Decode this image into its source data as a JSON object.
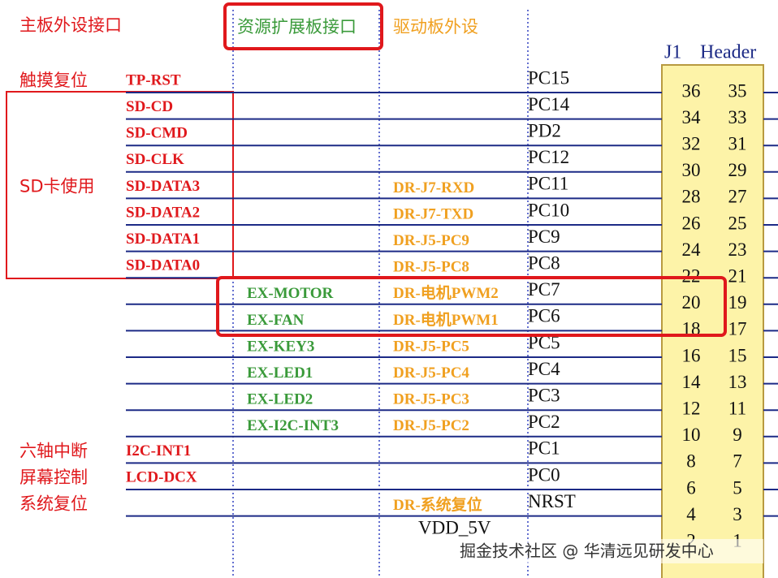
{
  "header": {
    "main": "主板外设接口",
    "expansion": "资源扩展板接口",
    "driver": "驱动板外设",
    "connector": "J1",
    "connector_type": "Header"
  },
  "groups": [
    {
      "label": "触摸复位",
      "row": 0
    },
    {
      "label": "SD卡使用",
      "row": 4
    },
    {
      "label": "六轴中断",
      "row": 14
    },
    {
      "label": "屏幕控制",
      "row": 15
    },
    {
      "label": "系统复位",
      "row": 16
    }
  ],
  "rows": [
    {
      "main": "TP-RST",
      "pin": "PC15",
      "left": 36,
      "right": 35
    },
    {
      "main": "SD-CD",
      "pin": "PC14",
      "left": 34,
      "right": 33
    },
    {
      "main": "SD-CMD",
      "pin": "PD2",
      "left": 32,
      "right": 31
    },
    {
      "main": "SD-CLK",
      "pin": "PC12",
      "left": 30,
      "right": 29
    },
    {
      "main": "SD-DATA3",
      "driver": "DR-J7-RXD",
      "pin": "PC11",
      "left": 28,
      "right": 27
    },
    {
      "main": "SD-DATA2",
      "driver": "DR-J7-TXD",
      "pin": "PC10",
      "left": 26,
      "right": 25
    },
    {
      "main": "SD-DATA1",
      "driver": "DR-J5-PC9",
      "pin": "PC9",
      "left": 24,
      "right": 23
    },
    {
      "main": "SD-DATA0",
      "driver": "DR-J5-PC8",
      "pin": "PC8",
      "left": 22,
      "right": 21
    },
    {
      "expansion": "EX-MOTOR",
      "driver": "DR-电机PWM2",
      "pin": "PC7",
      "left": 20,
      "right": 19
    },
    {
      "expansion": "EX-FAN",
      "driver": "DR-电机PWM1",
      "pin": "PC6",
      "left": 18,
      "right": 17
    },
    {
      "expansion": "EX-KEY3",
      "driver": "DR-J5-PC5",
      "pin": "PC5",
      "left": 16,
      "right": 15
    },
    {
      "expansion": "EX-LED1",
      "driver": "DR-J5-PC4",
      "pin": "PC4",
      "left": 14,
      "right": 13
    },
    {
      "expansion": "EX-LED2",
      "driver": "DR-J5-PC3",
      "pin": "PC3",
      "left": 12,
      "right": 11
    },
    {
      "expansion": "EX-I2C-INT3",
      "driver": "DR-J5-PC2",
      "pin": "PC2",
      "left": 10,
      "right": 9
    },
    {
      "main": "I2C-INT1",
      "pin": "PC1",
      "left": 8,
      "right": 7
    },
    {
      "main": "LCD-DCX",
      "pin": "PC0",
      "left": 6,
      "right": 5
    },
    {
      "driver": "DR-系统复位",
      "pin": "NRST",
      "left": 4,
      "right": 3
    },
    {
      "pin": "VDD_5V",
      "left": 2,
      "right": 1
    }
  ],
  "watermark": "掘金技术社区 @ 华清远见研发中心"
}
